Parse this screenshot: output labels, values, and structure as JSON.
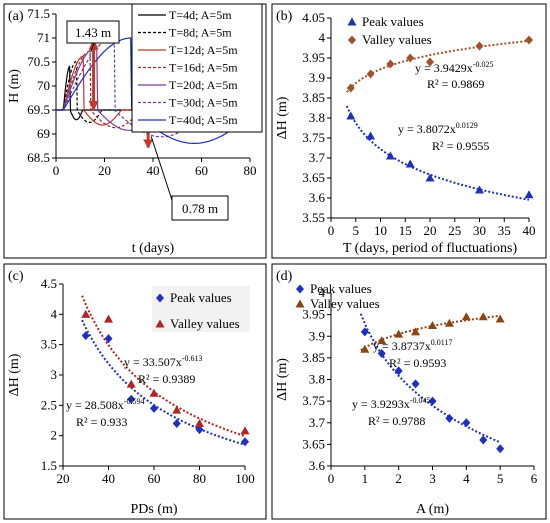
{
  "chart_data": [
    {
      "id": "a",
      "panel_label": "(a)",
      "type": "line",
      "xlabel": "t (days)",
      "ylabel": "H (m)",
      "xlim": [
        0,
        80
      ],
      "ylim": [
        68.5,
        71.5
      ],
      "xticks": [
        "0",
        "20",
        "40",
        "60",
        "80"
      ],
      "yticks": [
        "68.5",
        "69",
        "69.5",
        "70",
        "70.5",
        "71",
        "71.5"
      ],
      "grid": false,
      "legend_position": "top-right",
      "series": [
        {
          "name": "T=4d; A=5m",
          "color": "#000000",
          "dash": "solid",
          "T": 4
        },
        {
          "name": "T=8d; A=5m",
          "color": "#000000",
          "dash": "dashed",
          "T": 8
        },
        {
          "name": "T=12d; A=5m",
          "color": "#c0392b",
          "dash": "solid",
          "T": 12
        },
        {
          "name": "T=16d; A=5m",
          "color": "#a52a2a",
          "dash": "dashed",
          "T": 16
        },
        {
          "name": "T=20d; A=5m",
          "color": "#7b3fa0",
          "dash": "solid",
          "T": 20
        },
        {
          "name": "T=30d; A=5m",
          "color": "#6a3d9a",
          "dash": "dashed",
          "T": 30
        },
        {
          "name": "T=40d; A=5m",
          "color": "#1f2fbf",
          "dash": "solid",
          "T": 40
        }
      ],
      "baseline": 69.5,
      "annotations": [
        {
          "text": "1.43 m",
          "target": "peak",
          "value": 1.43
        },
        {
          "text": "0.78 m",
          "target": "valley",
          "value": 0.78
        }
      ]
    },
    {
      "id": "b",
      "panel_label": "(b)",
      "type": "scatter",
      "xlabel": "T (days, period of fluctuations)",
      "ylabel": "ΔH (m)",
      "xlim": [
        0,
        40
      ],
      "ylim": [
        3.55,
        4.05
      ],
      "xticks": [
        "0",
        "5",
        "10",
        "15",
        "20",
        "25",
        "30",
        "35",
        "40"
      ],
      "yticks": [
        "3.55",
        "3.6",
        "3.65",
        "3.7",
        "3.75",
        "3.8",
        "3.85",
        "3.9",
        "3.95",
        "4",
        "4.05"
      ],
      "grid": false,
      "legend_position": "top-left",
      "series": [
        {
          "name": "Peak values",
          "marker": "triangle",
          "color": "#1f2fbf",
          "x": [
            4,
            8,
            12,
            16,
            20,
            30,
            40
          ],
          "y": [
            3.805,
            3.755,
            3.705,
            3.685,
            3.65,
            3.62,
            3.608
          ],
          "fit": {
            "a": 3.9429,
            "b": -0.025,
            "equation": "y = 3.9429x",
            "exponent": "-0.025",
            "r2": "R² = 0.9869"
          }
        },
        {
          "name": "Valley values",
          "marker": "diamond",
          "color": "#a0522d",
          "x": [
            4,
            8,
            12,
            16,
            20,
            30,
            40
          ],
          "y": [
            3.875,
            3.91,
            3.935,
            3.95,
            3.94,
            3.98,
            3.995
          ],
          "fit": {
            "a": 3.8072,
            "b": 0.0129,
            "equation": "y = 3.8072x",
            "exponent": "0.0129",
            "r2": "R² = 0.9555"
          }
        }
      ]
    },
    {
      "id": "c",
      "panel_label": "(c)",
      "type": "scatter",
      "xlabel": "PDs (m)",
      "ylabel": "ΔH (m)",
      "xlim": [
        20,
        100
      ],
      "ylim": [
        1.5,
        4.5
      ],
      "xticks": [
        "20",
        "40",
        "60",
        "80",
        "100"
      ],
      "yticks": [
        "1.5",
        "2",
        "2.5",
        "3",
        "3.5",
        "4",
        "4.5"
      ],
      "grid": false,
      "legend_position": "right",
      "series": [
        {
          "name": "Peak values",
          "marker": "diamond",
          "color": "#1f2fbf",
          "x": [
            30,
            40,
            50,
            60,
            70,
            80,
            100
          ],
          "y": [
            3.65,
            3.6,
            2.6,
            2.45,
            2.2,
            2.1,
            1.9
          ],
          "fit": {
            "a": 28.508,
            "b": -0.594,
            "equation": "y = 28.508x",
            "exponent": "-0.594",
            "r2": "R² = 0.933"
          }
        },
        {
          "name": "Valley values",
          "marker": "triangle",
          "color": "#b22222",
          "x": [
            30,
            40,
            50,
            60,
            70,
            80,
            100
          ],
          "y": [
            4.0,
            3.92,
            2.85,
            2.7,
            2.42,
            2.2,
            2.08
          ],
          "fit": {
            "a": 33.507,
            "b": -0.613,
            "equation": "y = 33.507x",
            "exponent": "-0.613",
            "r2": "R² = 0.9389"
          }
        }
      ]
    },
    {
      "id": "d",
      "panel_label": "(d)",
      "type": "scatter",
      "xlabel": "A (m)",
      "ylabel": "ΔH (m)",
      "xlim": [
        0,
        6
      ],
      "ylim": [
        3.6,
        4.0
      ],
      "xticks": [
        "0",
        "1",
        "2",
        "3",
        "4",
        "5",
        "6"
      ],
      "yticks": [
        "3.6",
        "3.65",
        "3.7",
        "3.75",
        "3.8",
        "3.85",
        "3.9",
        "3.95",
        "4"
      ],
      "grid": false,
      "legend_position": "top-left",
      "series": [
        {
          "name": "Peak values",
          "marker": "diamond",
          "color": "#1f2fbf",
          "x": [
            1,
            1.5,
            2,
            2.5,
            3,
            3.5,
            4,
            4.5,
            5
          ],
          "y": [
            3.91,
            3.86,
            3.82,
            3.79,
            3.75,
            3.71,
            3.7,
            3.66,
            3.64
          ],
          "fit": {
            "a": 3.9293,
            "b": -0.045,
            "equation": "y = 3.9293x",
            "exponent": "-0.045",
            "r2": "R² = 0.9788"
          }
        },
        {
          "name": "Valley values",
          "marker": "triangle",
          "color": "#8b4513",
          "x": [
            1,
            1.5,
            2,
            2.5,
            3,
            3.5,
            4,
            4.5,
            5
          ],
          "y": [
            3.87,
            3.89,
            3.905,
            3.91,
            3.925,
            3.93,
            3.945,
            3.945,
            3.94
          ],
          "fit": {
            "a": 3.8737,
            "b": 0.0117,
            "equation": "y = 3.8737x",
            "exponent": "0.0117",
            "r2": "R² = 0.9593"
          }
        }
      ]
    }
  ]
}
